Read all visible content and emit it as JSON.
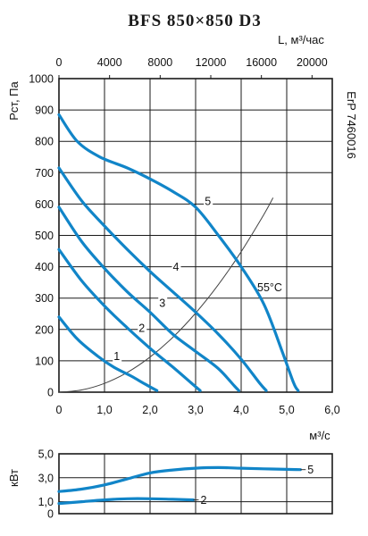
{
  "title": "BFS 850×850 D3",
  "side_label": "ErP 7460016",
  "chart_data": [
    {
      "type": "line",
      "name": "pressure",
      "xlabel": "м³/с",
      "ylabel": "Рст, Па",
      "x2label": "L, м³/час",
      "xlim": [
        0,
        6
      ],
      "ylim": [
        0,
        1000
      ],
      "x2lim": [
        0,
        21600
      ],
      "xticks": [
        "0",
        "1,0",
        "2,0",
        "3,0",
        "4,0",
        "5,0",
        "6,0"
      ],
      "yticks": [
        "0",
        "100",
        "200",
        "300",
        "400",
        "500",
        "600",
        "700",
        "800",
        "900",
        "1000"
      ],
      "x2ticks": [
        "0",
        "4000",
        "8000",
        "12000",
        "16000",
        "20000"
      ],
      "grid": true,
      "annotation": "55°С",
      "series": [
        {
          "name": "1",
          "points": [
            [
              0,
              240
            ],
            [
              0.4,
              170
            ],
            [
              0.85,
              115
            ],
            [
              1.2,
              80
            ],
            [
              1.6,
              50
            ],
            [
              1.9,
              25
            ],
            [
              2.15,
              5
            ]
          ]
        },
        {
          "name": "2",
          "points": [
            [
              0,
              455
            ],
            [
              0.5,
              355
            ],
            [
              1.0,
              275
            ],
            [
              1.5,
              205
            ],
            [
              2.0,
              140
            ],
            [
              2.5,
              80
            ],
            [
              2.9,
              30
            ],
            [
              3.1,
              5
            ]
          ]
        },
        {
          "name": "3",
          "points": [
            [
              0,
              590
            ],
            [
              0.5,
              480
            ],
            [
              1.0,
              395
            ],
            [
              1.5,
              320
            ],
            [
              2.0,
              255
            ],
            [
              2.5,
              185
            ],
            [
              3.0,
              130
            ],
            [
              3.5,
              75
            ],
            [
              3.85,
              20
            ],
            [
              3.95,
              5
            ]
          ]
        },
        {
          "name": "4",
          "points": [
            [
              0,
              715
            ],
            [
              0.5,
              610
            ],
            [
              1.0,
              530
            ],
            [
              1.5,
              455
            ],
            [
              2.0,
              385
            ],
            [
              2.5,
              320
            ],
            [
              3.0,
              255
            ],
            [
              3.5,
              185
            ],
            [
              4.0,
              105
            ],
            [
              4.4,
              30
            ],
            [
              4.55,
              5
            ]
          ]
        },
        {
          "name": "5",
          "points": [
            [
              0,
              885
            ],
            [
              0.4,
              800
            ],
            [
              0.9,
              750
            ],
            [
              1.5,
              715
            ],
            [
              2.0,
              680
            ],
            [
              2.5,
              640
            ],
            [
              3.0,
              590
            ],
            [
              3.5,
              500
            ],
            [
              4.0,
              400
            ],
            [
              4.5,
              280
            ],
            [
              4.9,
              130
            ],
            [
              5.15,
              30
            ],
            [
              5.25,
              5
            ]
          ]
        }
      ],
      "system_curve": [
        [
          0,
          0
        ],
        [
          0.5,
          7
        ],
        [
          1.0,
          28
        ],
        [
          1.5,
          63
        ],
        [
          2.0,
          112
        ],
        [
          2.5,
          175
        ],
        [
          3.0,
          252
        ],
        [
          3.5,
          343
        ],
        [
          4.0,
          448
        ],
        [
          4.5,
          567
        ],
        [
          4.7,
          620
        ]
      ],
      "curve_label_points": {
        "1": [
          1.2,
          105
        ],
        "2": [
          1.75,
          195
        ],
        "3": [
          2.2,
          275
        ],
        "4": [
          2.5,
          390
        ],
        "5": [
          3.2,
          600
        ]
      }
    },
    {
      "type": "line",
      "name": "power",
      "ylabel": "кВт",
      "xlim": [
        0,
        6
      ],
      "ylim": [
        0,
        5
      ],
      "yticks": [
        "0",
        "1,0",
        "3,0",
        "5,0"
      ],
      "series": [
        {
          "name": "5",
          "points": [
            [
              0,
              1.85
            ],
            [
              0.5,
              2.05
            ],
            [
              1.0,
              2.4
            ],
            [
              1.5,
              2.9
            ],
            [
              2.0,
              3.4
            ],
            [
              2.5,
              3.65
            ],
            [
              3.0,
              3.8
            ],
            [
              3.5,
              3.85
            ],
            [
              4.0,
              3.8
            ],
            [
              4.5,
              3.75
            ],
            [
              5.0,
              3.7
            ],
            [
              5.3,
              3.68
            ]
          ]
        },
        {
          "name": "2",
          "points": [
            [
              0,
              0.85
            ],
            [
              0.5,
              1.0
            ],
            [
              1.0,
              1.15
            ],
            [
              1.5,
              1.25
            ],
            [
              2.0,
              1.25
            ],
            [
              2.5,
              1.2
            ],
            [
              2.95,
              1.15
            ]
          ]
        }
      ]
    }
  ]
}
